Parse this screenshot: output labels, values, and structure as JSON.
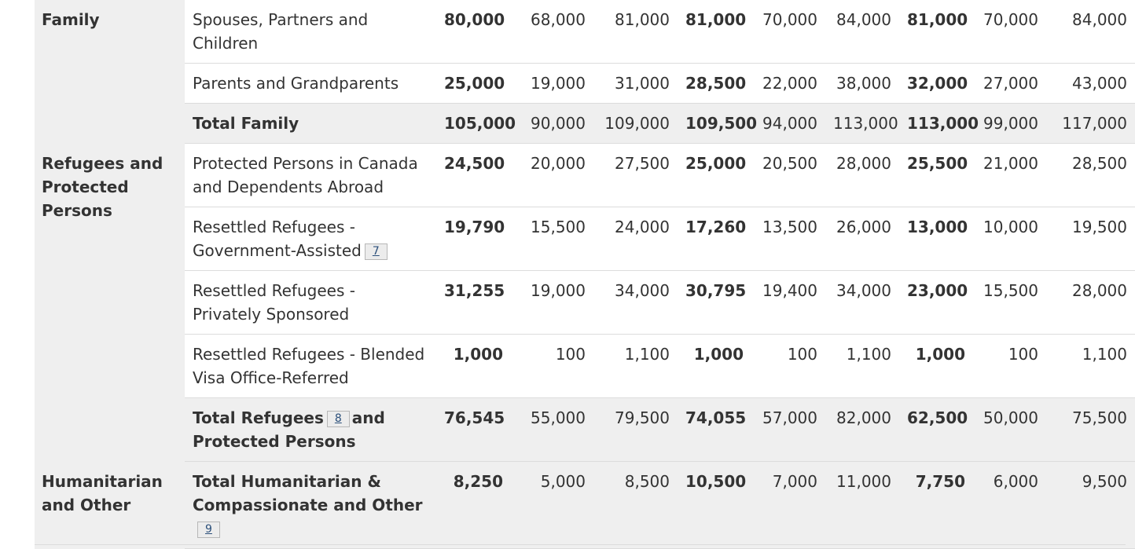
{
  "categories": {
    "family": "Family",
    "refugees": "Refugees and Protected Persons",
    "humanitarian": "Humanitarian and Other"
  },
  "rows": [
    {
      "label": "Spouses, Partners and Children",
      "values": [
        "80,000",
        "68,000",
        "81,000",
        "81,000",
        "70,000",
        "84,000",
        "81,000",
        "70,000",
        "84,000"
      ]
    },
    {
      "label": "Parents and Grandparents",
      "values": [
        "25,000",
        "19,000",
        "31,000",
        "28,500",
        "22,000",
        "38,000",
        "32,000",
        "27,000",
        "43,000"
      ]
    },
    {
      "label": "Total Family",
      "values": [
        "105,000",
        "90,000",
        "109,000",
        "109,500",
        "94,000",
        "113,000",
        "113,000",
        "99,000",
        "117,000"
      ]
    },
    {
      "label": "Protected Persons in Canada and Dependents Abroad",
      "values": [
        "24,500",
        "20,000",
        "27,500",
        "25,000",
        "20,500",
        "28,000",
        "25,500",
        "21,000",
        "28,500"
      ]
    },
    {
      "label": "Resettled Refugees - Government-Assisted",
      "footnote": "7",
      "values": [
        "19,790",
        "15,500",
        "24,000",
        "17,260",
        "13,500",
        "26,000",
        "13,000",
        "10,000",
        "19,500"
      ]
    },
    {
      "label": "Resettled Refugees - Privately Sponsored",
      "values": [
        "31,255",
        "19,000",
        "34,000",
        "30,795",
        "19,400",
        "34,000",
        "23,000",
        "15,500",
        "28,000"
      ]
    },
    {
      "label": "Resettled Refugees - Blended Visa Office-Referred",
      "values": [
        "1,000",
        "100",
        "1,100",
        "1,000",
        "100",
        "1,100",
        "1,000",
        "100",
        "1,100"
      ]
    },
    {
      "label_part1": "Total Refugees",
      "footnote": "8",
      "label_part2": "and Protected Persons",
      "values": [
        "76,545",
        "55,000",
        "79,500",
        "74,055",
        "57,000",
        "82,000",
        "62,500",
        "50,000",
        "75,500"
      ]
    },
    {
      "label": "Total Humanitarian & Compassionate and Other",
      "footnote": "9",
      "values": [
        "8,250",
        "5,000",
        "8,500",
        "10,500",
        "7,000",
        "11,000",
        "7,750",
        "6,000",
        "9,500"
      ]
    }
  ]
}
